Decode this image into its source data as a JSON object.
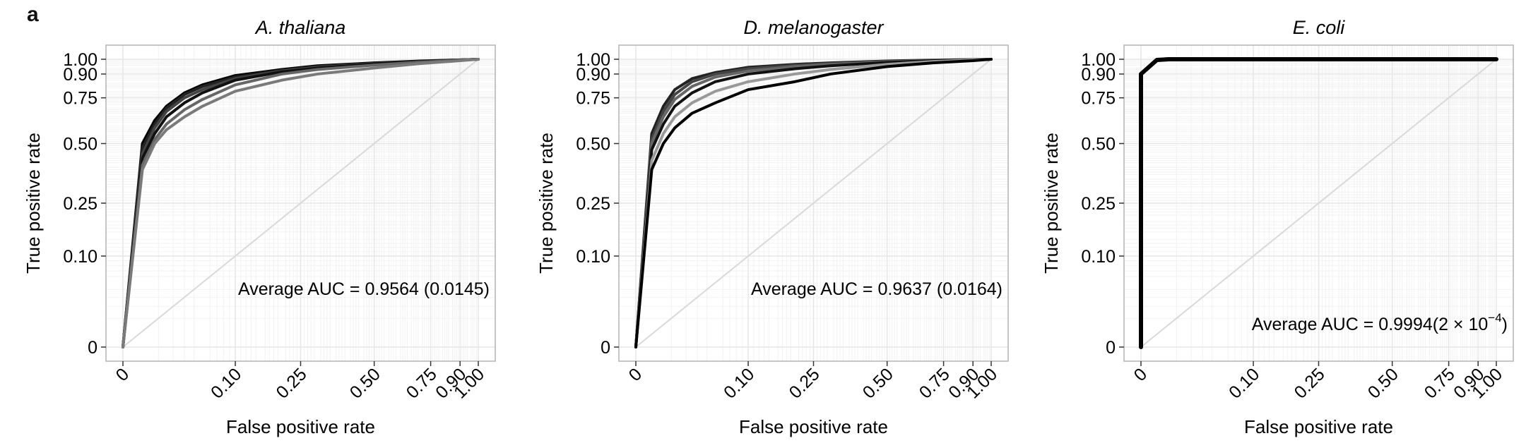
{
  "panel_label": "a",
  "axis": {
    "xlabel": "False positive rate",
    "ylabel": "True positive rate",
    "ticks": [
      0,
      0.1,
      0.25,
      0.5,
      0.75,
      0.9,
      1.0
    ],
    "tick_labels": [
      "0",
      "0.10",
      "0.25",
      "0.50",
      "0.75",
      "0.90",
      "1.00"
    ]
  },
  "colors": {
    "panel_border": "#b3b3b3",
    "grid": "#e6e6e6",
    "diagonal": "#d9d9d9",
    "series": [
      "#000000",
      "#1a1a1a",
      "#333333",
      "#555555",
      "#777777",
      "#999999"
    ]
  },
  "chart_data": [
    {
      "type": "line",
      "title": "A. thaliana",
      "xlabel": "False positive rate",
      "ylabel": "True positive rate",
      "xlim": [
        0,
        1
      ],
      "ylim": [
        0,
        1
      ],
      "scale": "sqrt",
      "grid": true,
      "annotation": "Average AUC = 0.9564 (0.0145)",
      "series": [
        {
          "color": "#000000",
          "x": [
            0,
            0.003,
            0.008,
            0.015,
            0.03,
            0.05,
            0.1,
            0.2,
            0.3,
            0.5,
            0.7,
            0.9,
            1
          ],
          "y": [
            0,
            0.5,
            0.62,
            0.7,
            0.78,
            0.83,
            0.89,
            0.93,
            0.955,
            0.975,
            0.988,
            0.996,
            1
          ]
        },
        {
          "color": "#222222",
          "x": [
            0,
            0.003,
            0.008,
            0.015,
            0.03,
            0.05,
            0.1,
            0.2,
            0.3,
            0.5,
            0.7,
            0.9,
            1
          ],
          "y": [
            0,
            0.48,
            0.6,
            0.69,
            0.77,
            0.82,
            0.88,
            0.925,
            0.95,
            0.972,
            0.986,
            0.995,
            1
          ]
        },
        {
          "color": "#444444",
          "x": [
            0,
            0.003,
            0.008,
            0.015,
            0.03,
            0.05,
            0.1,
            0.2,
            0.3,
            0.5,
            0.7,
            0.9,
            1
          ],
          "y": [
            0,
            0.45,
            0.58,
            0.67,
            0.75,
            0.8,
            0.87,
            0.92,
            0.945,
            0.97,
            0.985,
            0.995,
            1
          ]
        },
        {
          "color": "#111111",
          "x": [
            0,
            0.003,
            0.008,
            0.015,
            0.03,
            0.05,
            0.1,
            0.2,
            0.3,
            0.5,
            0.7,
            0.9,
            1
          ],
          "y": [
            0,
            0.43,
            0.55,
            0.64,
            0.72,
            0.78,
            0.86,
            0.915,
            0.94,
            0.968,
            0.984,
            0.994,
            1
          ]
        },
        {
          "color": "#666666",
          "x": [
            0,
            0.003,
            0.008,
            0.015,
            0.03,
            0.05,
            0.1,
            0.2,
            0.3,
            0.5,
            0.7,
            0.9,
            1
          ],
          "y": [
            0,
            0.4,
            0.52,
            0.6,
            0.68,
            0.74,
            0.83,
            0.9,
            0.93,
            0.96,
            0.98,
            0.993,
            1
          ]
        },
        {
          "color": "#7a7a7a",
          "x": [
            0,
            0.003,
            0.008,
            0.015,
            0.03,
            0.05,
            0.1,
            0.2,
            0.3,
            0.5,
            0.7,
            0.9,
            1
          ],
          "y": [
            0,
            0.38,
            0.5,
            0.57,
            0.64,
            0.7,
            0.79,
            0.86,
            0.9,
            0.94,
            0.97,
            0.99,
            1
          ]
        }
      ]
    },
    {
      "type": "line",
      "title": "D. melanogaster",
      "xlabel": "False positive rate",
      "ylabel": "True positive rate",
      "xlim": [
        0,
        1
      ],
      "ylim": [
        0,
        1
      ],
      "scale": "sqrt",
      "grid": true,
      "annotation": "Average AUC = 0.9637 (0.0164)",
      "series": [
        {
          "color": "#222222",
          "x": [
            0,
            0.002,
            0.006,
            0.012,
            0.025,
            0.05,
            0.1,
            0.2,
            0.3,
            0.5,
            0.7,
            0.9,
            1
          ],
          "y": [
            0,
            0.55,
            0.7,
            0.8,
            0.87,
            0.91,
            0.945,
            0.965,
            0.975,
            0.988,
            0.994,
            0.998,
            1
          ]
        },
        {
          "color": "#444444",
          "x": [
            0,
            0.002,
            0.006,
            0.012,
            0.025,
            0.05,
            0.1,
            0.2,
            0.3,
            0.5,
            0.7,
            0.9,
            1
          ],
          "y": [
            0,
            0.52,
            0.67,
            0.77,
            0.85,
            0.9,
            0.935,
            0.958,
            0.97,
            0.985,
            0.992,
            0.997,
            1
          ]
        },
        {
          "color": "#666666",
          "x": [
            0,
            0.002,
            0.006,
            0.012,
            0.025,
            0.05,
            0.1,
            0.2,
            0.3,
            0.5,
            0.7,
            0.9,
            1
          ],
          "y": [
            0,
            0.5,
            0.64,
            0.74,
            0.82,
            0.88,
            0.92,
            0.95,
            0.965,
            0.982,
            0.991,
            0.997,
            1
          ]
        },
        {
          "color": "#111111",
          "x": [
            0,
            0.002,
            0.006,
            0.012,
            0.025,
            0.05,
            0.1,
            0.2,
            0.3,
            0.5,
            0.7,
            0.9,
            1
          ],
          "y": [
            0,
            0.47,
            0.6,
            0.7,
            0.78,
            0.85,
            0.9,
            0.935,
            0.955,
            0.978,
            0.99,
            0.996,
            1
          ]
        },
        {
          "color": "#999999",
          "x": [
            0,
            0.002,
            0.006,
            0.012,
            0.025,
            0.05,
            0.1,
            0.2,
            0.3,
            0.5,
            0.7,
            0.9,
            1
          ],
          "y": [
            0,
            0.42,
            0.55,
            0.64,
            0.72,
            0.79,
            0.85,
            0.9,
            0.93,
            0.965,
            0.985,
            0.995,
            1
          ]
        },
        {
          "color": "#000000",
          "x": [
            0,
            0.002,
            0.006,
            0.012,
            0.025,
            0.05,
            0.1,
            0.2,
            0.3,
            0.5,
            0.7,
            0.9,
            1
          ],
          "y": [
            0,
            0.38,
            0.5,
            0.58,
            0.66,
            0.72,
            0.8,
            0.85,
            0.9,
            0.95,
            0.975,
            0.99,
            1
          ]
        }
      ]
    },
    {
      "type": "line",
      "title": "E. coli",
      "xlabel": "False positive rate",
      "ylabel": "True positive rate",
      "xlim": [
        0,
        1
      ],
      "ylim": [
        0,
        1
      ],
      "scale": "sqrt",
      "grid": true,
      "annotation": "Average AUC = 0.9994(2 × 10",
      "annotation_superscript": "−4",
      "annotation_suffix": ")",
      "series": [
        {
          "color": "#000000",
          "x": [
            0,
            0,
            0.002,
            0.006,
            1
          ],
          "y": [
            0,
            0.9,
            0.995,
            1,
            1
          ]
        }
      ]
    }
  ]
}
